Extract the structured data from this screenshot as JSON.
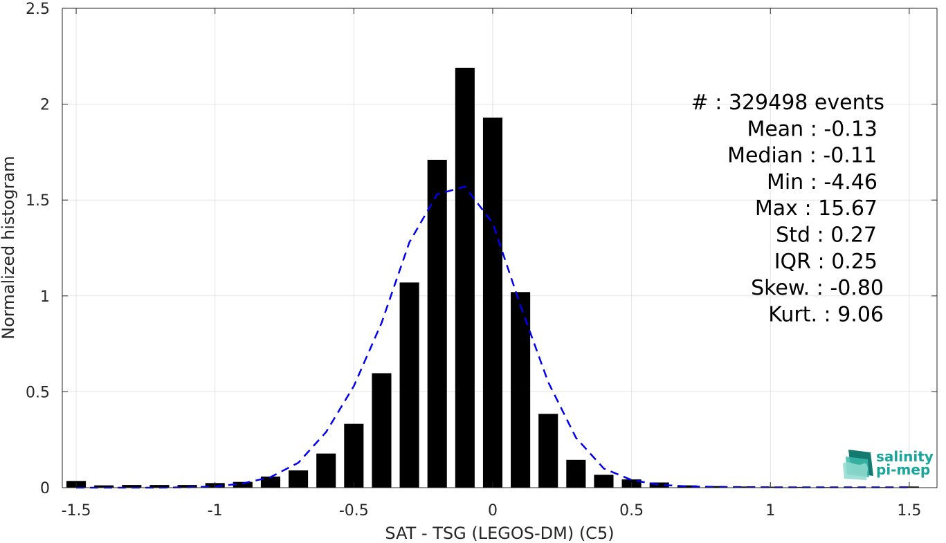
{
  "chart_data": {
    "type": "bar",
    "xlabel": "SAT - TSG (LEGOS-DM) (C5)",
    "ylabel": "Normalized histogram",
    "xlim": [
      -1.55,
      1.6
    ],
    "ylim": [
      0,
      2.5
    ],
    "xticks": [
      -1.5,
      -1,
      -0.5,
      0,
      0.5,
      1,
      1.5
    ],
    "xtick_labels": [
      "-1.5",
      "-1",
      "-0.5",
      "0",
      "0.5",
      "1",
      "1.5"
    ],
    "yticks": [
      0,
      0.5,
      1,
      1.5,
      2,
      2.5
    ],
    "ytick_labels": [
      "0",
      "0.5",
      "1",
      "1.5",
      "2",
      "2.5"
    ],
    "grid": true,
    "bar_color": "#000000",
    "bar_width": 0.07,
    "bars": {
      "x": [
        -1.5,
        -1.4,
        -1.3,
        -1.2,
        -1.1,
        -1.0,
        -0.9,
        -0.8,
        -0.7,
        -0.6,
        -0.5,
        -0.4,
        -0.3,
        -0.2,
        -0.1,
        0.0,
        0.1,
        0.2,
        0.3,
        0.4,
        0.5,
        0.6,
        0.7,
        0.8,
        0.9,
        1.0,
        1.1,
        1.2,
        1.3,
        1.4,
        1.5
      ],
      "values": [
        0.035,
        0.012,
        0.014,
        0.014,
        0.014,
        0.024,
        0.03,
        0.058,
        0.09,
        0.178,
        0.333,
        0.597,
        1.07,
        1.71,
        2.19,
        1.93,
        1.02,
        0.385,
        0.145,
        0.067,
        0.043,
        0.027,
        0.012,
        0.008,
        0.006,
        0.005,
        0.004,
        0.003,
        0.003,
        0.003,
        0.006
      ]
    },
    "fit_curve": {
      "style": "dashed",
      "color": "#0000ee",
      "x": [
        -1.5,
        -1.4,
        -1.3,
        -1.2,
        -1.1,
        -1.0,
        -0.9,
        -0.8,
        -0.7,
        -0.6,
        -0.5,
        -0.4,
        -0.3,
        -0.2,
        -0.1,
        0.0,
        0.1,
        0.2,
        0.3,
        0.4,
        0.5,
        0.6,
        0.7,
        0.8,
        0.9,
        1.0,
        1.1,
        1.2,
        1.3,
        1.4,
        1.5
      ],
      "values": [
        0.0,
        0.0,
        0.0,
        0.0,
        0.002,
        0.006,
        0.022,
        0.055,
        0.13,
        0.29,
        0.53,
        0.86,
        1.28,
        1.53,
        1.57,
        1.38,
        0.95,
        0.55,
        0.26,
        0.1,
        0.04,
        0.015,
        0.007,
        0.004,
        0.003,
        0.002,
        0.002,
        0.002,
        0.002,
        0.002,
        0.002
      ]
    },
    "annotations": [
      "#  : 329498 events",
      "Mean : -0.13",
      "Median : -0.11",
      "Min : -4.46",
      "Max : 15.67",
      "Std : 0.27",
      "IQR : 0.25",
      "Skew. : -0.80",
      "Kurt. : 9.06"
    ]
  },
  "logo": {
    "line1": "salinity",
    "line2": "pi-mep",
    "color": "#1aa59a"
  }
}
